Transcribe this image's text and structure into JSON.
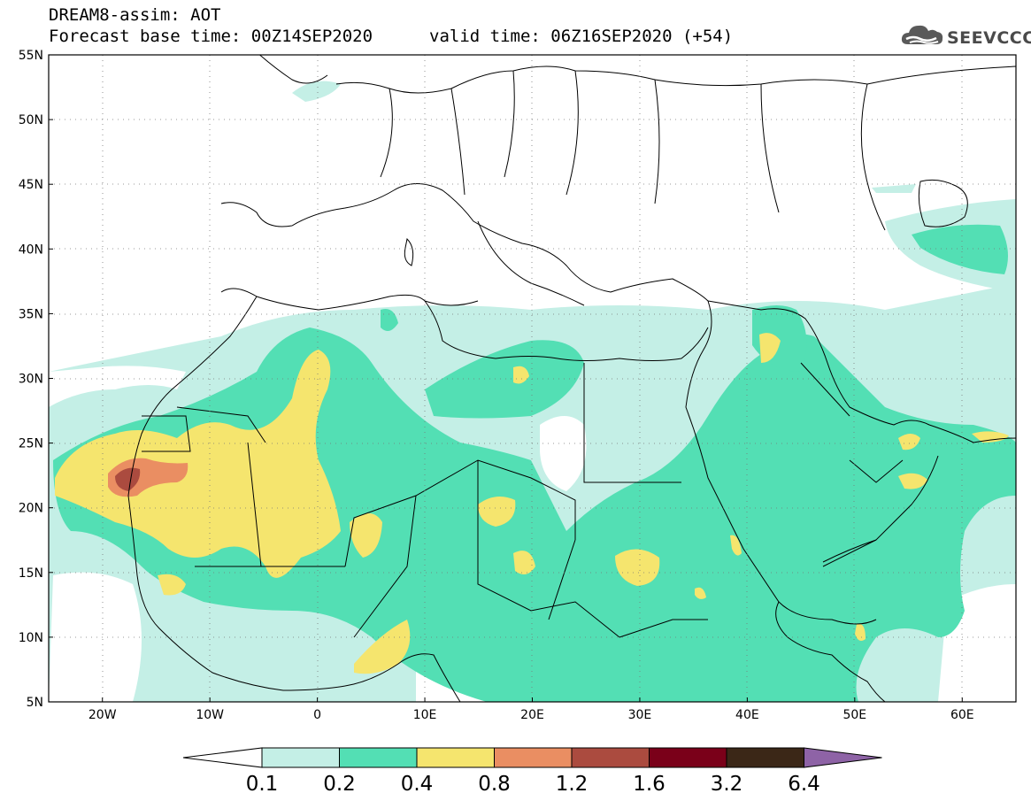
{
  "header": {
    "title": "DREAM8-assim: AOT",
    "base_time": "Forecast base time: 00Z14SEP2020",
    "valid_time": "valid time: 06Z16SEP2020 (+54)"
  },
  "logo": {
    "text": "SEEVCCC",
    "icon": "cloud-icon"
  },
  "map": {
    "lon_range": [
      -25,
      65
    ],
    "lat_range": [
      5,
      55
    ],
    "lat_ticks": [
      "5N",
      "10N",
      "15N",
      "20N",
      "25N",
      "30N",
      "35N",
      "40N",
      "45N",
      "50N",
      "55N"
    ],
    "lon_ticks": [
      "20W",
      "10W",
      "0",
      "10E",
      "20E",
      "30E",
      "40E",
      "50E",
      "60E"
    ],
    "gridlines": "dotted"
  },
  "colorbar": {
    "labels": [
      "0.1",
      "0.2",
      "0.4",
      "0.8",
      "1.2",
      "1.6",
      "3.2",
      "6.4"
    ],
    "colors": [
      "#c4efe6",
      "#53dfb4",
      "#f5e56e",
      "#ea8e62",
      "#ab4b3f",
      "#7a0019",
      "#3b2717",
      "#8e63a6"
    ],
    "under_color": "#ffffff"
  }
}
